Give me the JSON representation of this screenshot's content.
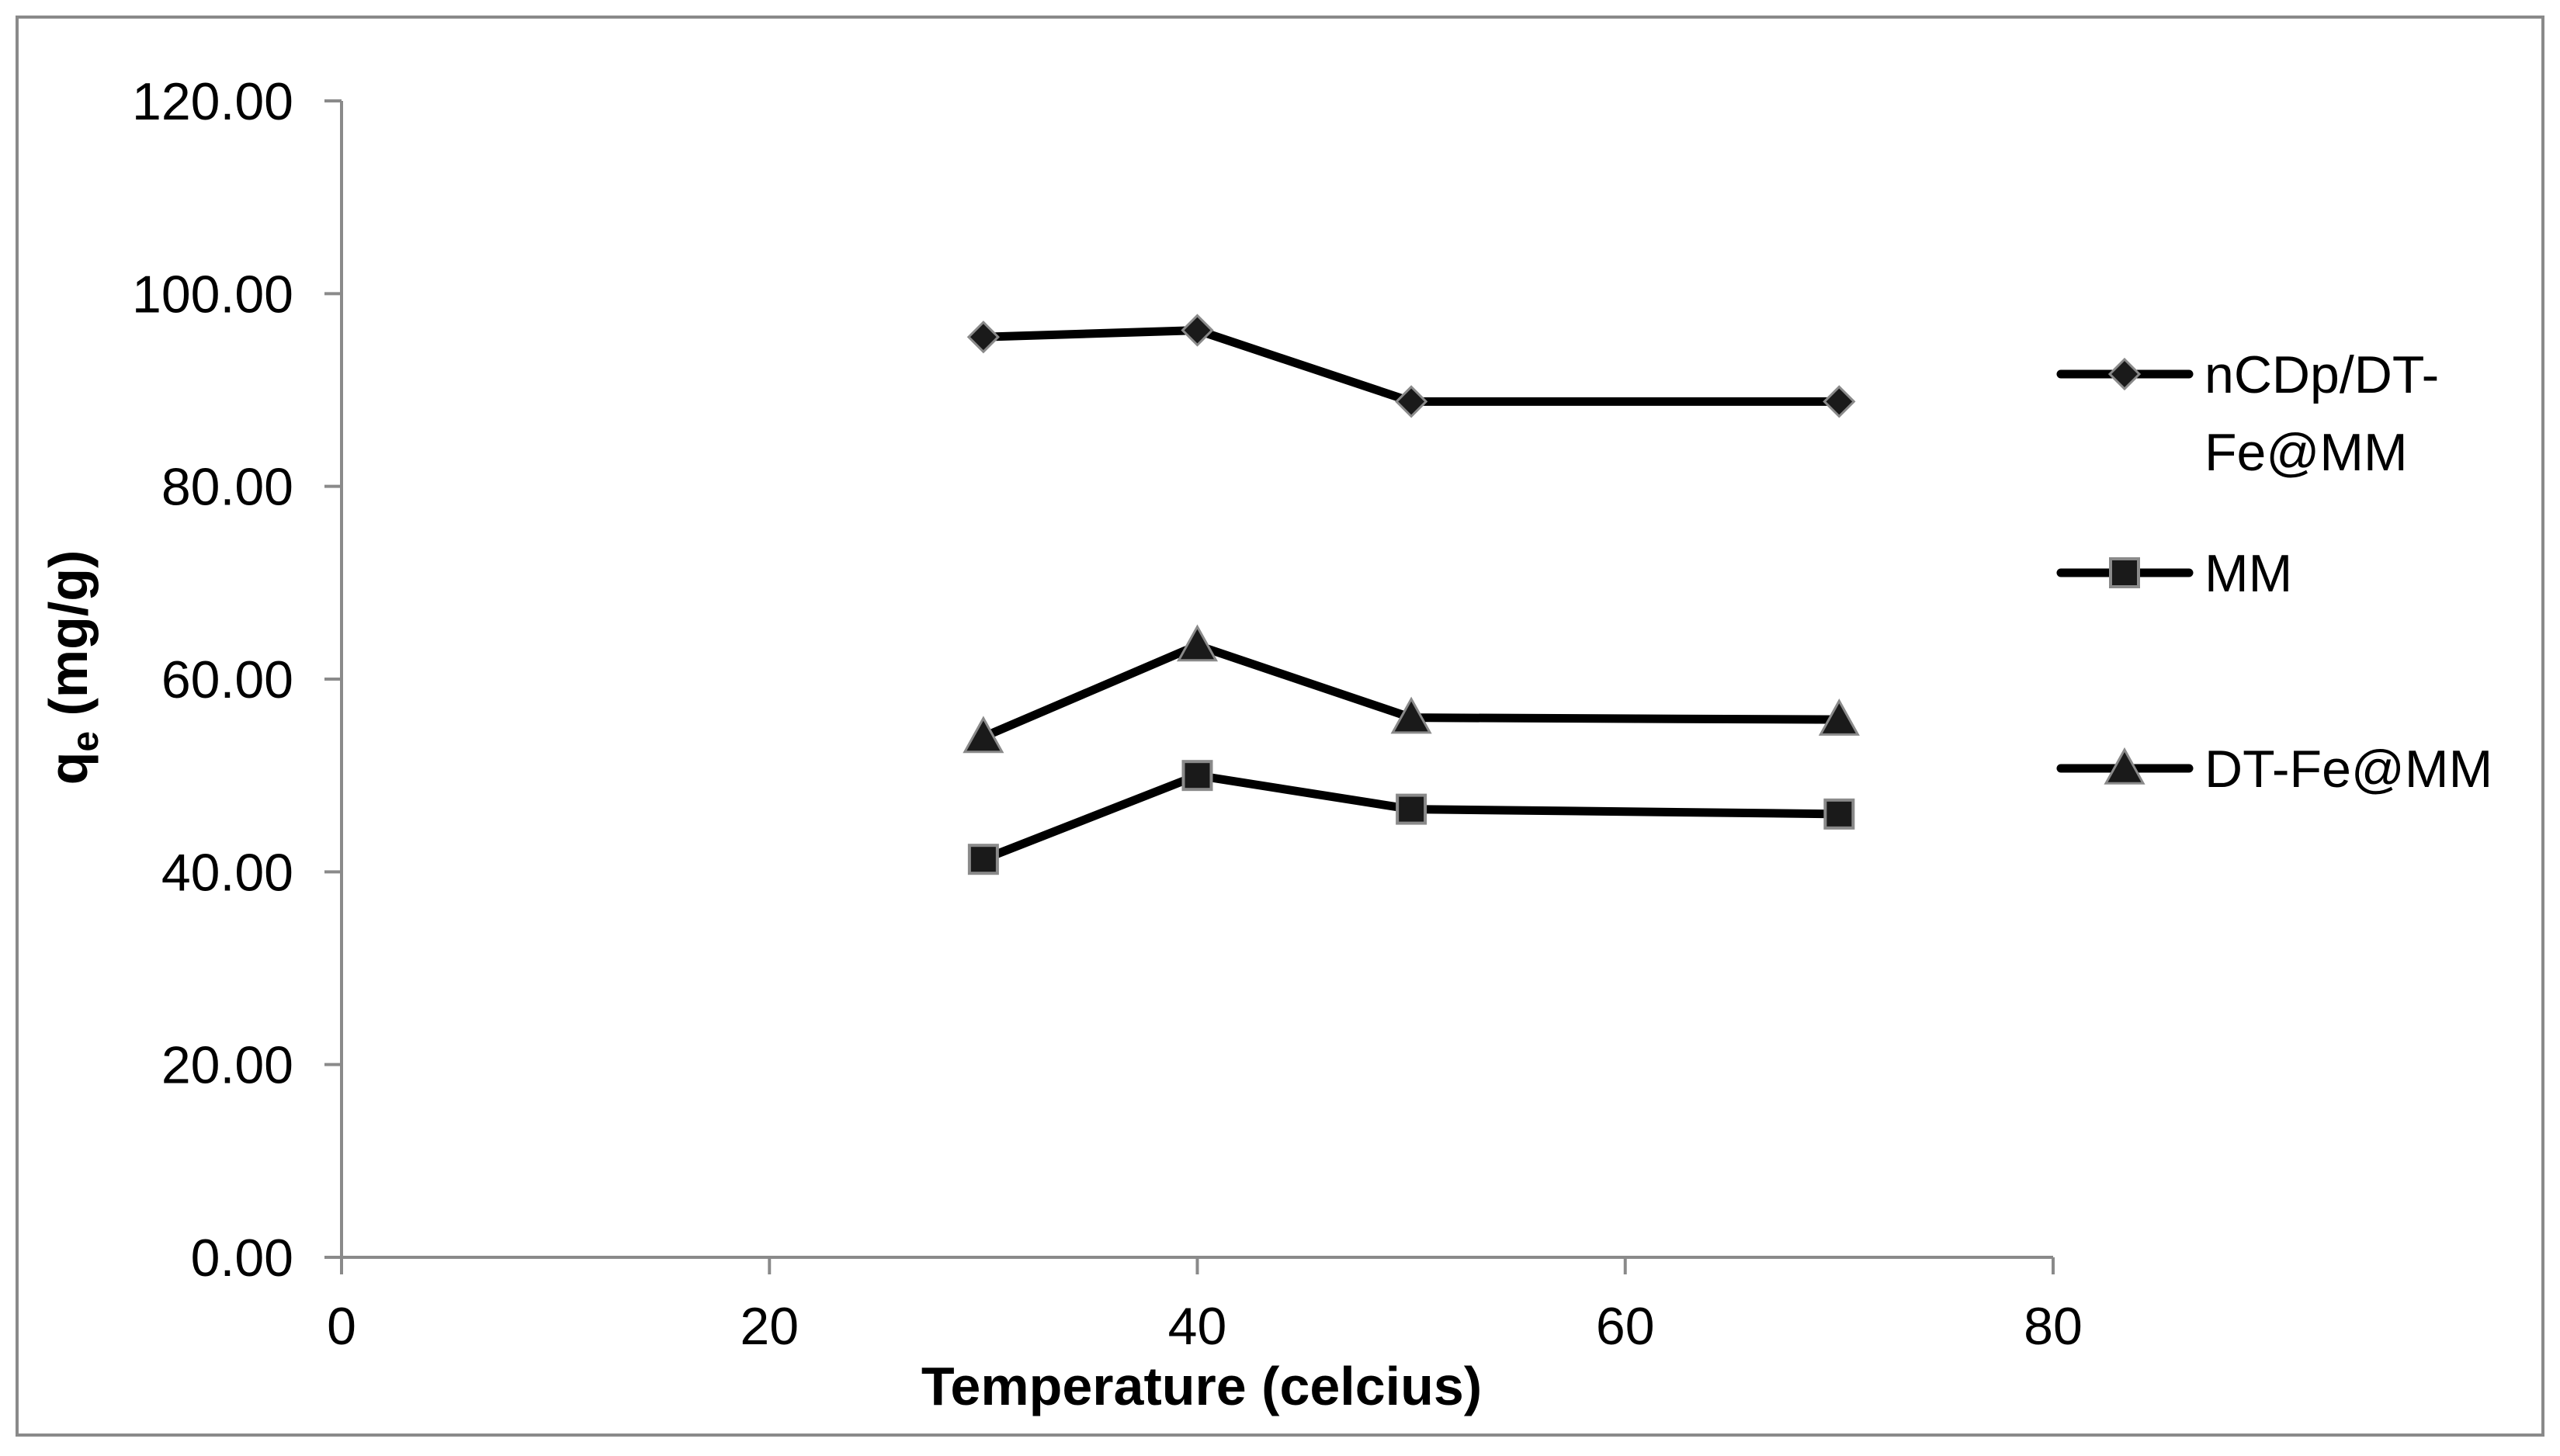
{
  "chart_data": {
    "type": "line",
    "title": "",
    "xlabel": "Temperature (celcius)",
    "ylabel": "q",
    "ylabel_subscript": "e",
    "ylabel_units": " (mg/g)",
    "xlim": [
      0,
      80
    ],
    "ylim": [
      0,
      120
    ],
    "x_ticks": [
      0,
      20,
      40,
      60,
      80
    ],
    "x_tick_labels": [
      "0",
      "20",
      "40",
      "60",
      "80"
    ],
    "y_ticks": [
      0,
      20,
      40,
      60,
      80,
      100,
      120
    ],
    "y_tick_labels": [
      "0.00",
      "20.00",
      "40.00",
      "60.00",
      "80.00",
      "100.00",
      "120.00"
    ],
    "grid": false,
    "legend_position": "right",
    "series": [
      {
        "name": "nCDp/DT-Fe@MM",
        "legend_lines": [
          "nCDp/DT-",
          "Fe@MM"
        ],
        "marker": "diamond",
        "x": [
          30,
          40,
          50,
          70
        ],
        "y": [
          95.5,
          96.2,
          88.8,
          88.8
        ]
      },
      {
        "name": "MM",
        "legend_lines": [
          "MM"
        ],
        "marker": "square",
        "x": [
          30,
          40,
          50,
          70
        ],
        "y": [
          41.3,
          50.0,
          46.5,
          46.0
        ]
      },
      {
        "name": "DT-Fe@MM",
        "legend_lines": [
          "DT-Fe@MM"
        ],
        "marker": "triangle",
        "x": [
          30,
          40,
          50,
          70
        ],
        "y": [
          54.0,
          63.5,
          56.0,
          55.8
        ]
      }
    ],
    "colors": {
      "line": "#000000",
      "marker_fill": "#1a1a1a",
      "marker_stroke": "#8a8a8a",
      "frame": "#8a8a8a",
      "axis": "#8a8a8a"
    }
  }
}
